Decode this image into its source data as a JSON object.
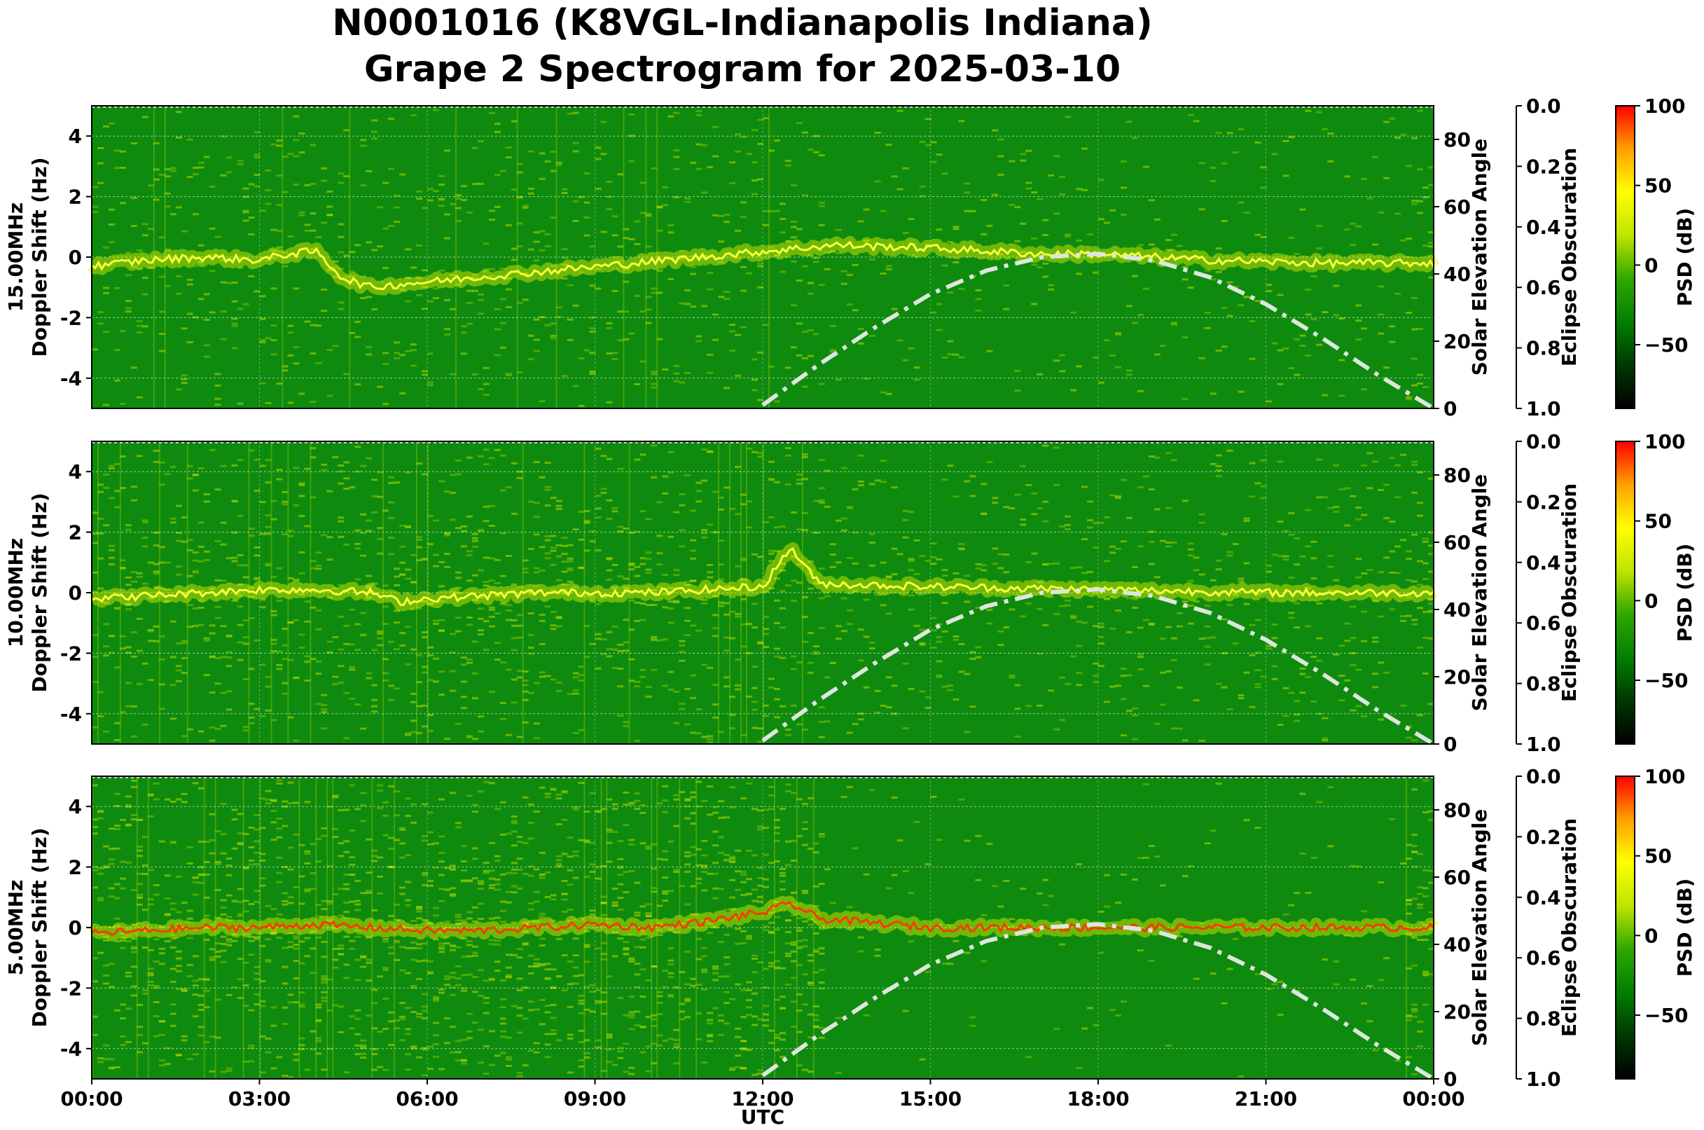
{
  "title_line1": "N0001016 (K8VGL-Indianapolis Indiana)",
  "title_line2": "Grape 2 Spectrogram for 2025-03-10",
  "xlabel": "UTC",
  "x_tick_labels": [
    "00:00",
    "03:00",
    "06:00",
    "09:00",
    "12:00",
    "15:00",
    "18:00",
    "21:00",
    "00:00"
  ],
  "colors": {
    "background_green": "#0e8a0e",
    "signal_yellow": "#e6f000",
    "signal_red": "#ff3a00",
    "solar_curve": "#dde6dd",
    "colormap": [
      "#000000",
      "#003800",
      "#008000",
      "#2ea800",
      "#bfe400",
      "#ffff00",
      "#ffa000",
      "#ff0000"
    ]
  },
  "chart_data": [
    {
      "type": "heatmap",
      "label": "15.00MHz",
      "ylabel": "15.00MHz\nDoppler Shift (Hz)",
      "y_ticks": [
        4,
        2,
        0,
        -2,
        -4
      ],
      "ylim": [
        -5,
        5
      ],
      "xlim": [
        "00:00",
        "24:00"
      ],
      "solar_axis": {
        "label": "Solar Elevation Angle",
        "ticks": [
          0,
          20,
          40,
          60,
          80
        ],
        "ylim": [
          0,
          90
        ]
      },
      "eclipse_axis": {
        "label": "Eclipse Obscuration",
        "ticks": [
          "0.0",
          "0.2",
          "0.4",
          "0.6",
          "0.8",
          "1.0"
        ],
        "ylim": [
          0,
          1
        ]
      },
      "colorbar": {
        "label": "PSD (dB)",
        "ticks": [
          "100",
          "50",
          "0",
          "−50"
        ],
        "range": [
          -90,
          100
        ]
      },
      "solar_elevation": {
        "hours": [
          12,
          13,
          14,
          15,
          16,
          17,
          18,
          19,
          20,
          21,
          22,
          23,
          24
        ],
        "degrees": [
          1,
          13,
          24,
          34,
          41,
          45,
          46,
          44,
          39,
          31,
          21,
          10,
          0
        ]
      },
      "doppler_trace": {
        "hours": [
          0,
          1,
          2,
          3,
          3.5,
          4,
          4.5,
          5,
          5.5,
          13.3,
          15,
          17,
          18,
          19,
          20,
          22,
          24
        ],
        "hz": [
          -0.3,
          -0.1,
          0.0,
          -0.1,
          0.1,
          0.2,
          -0.7,
          -1.0,
          -0.9,
          0.4,
          0.3,
          0.1,
          0.1,
          0.0,
          -0.1,
          -0.2,
          -0.2
        ]
      },
      "noise_level": 0.35,
      "day_noise_level": 0.2
    },
    {
      "type": "heatmap",
      "label": "10.00MHz",
      "ylabel": "10.00MHz\nDoppler Shift (Hz)",
      "y_ticks": [
        4,
        2,
        0,
        -2,
        -4
      ],
      "ylim": [
        -5,
        5
      ],
      "xlim": [
        "00:00",
        "24:00"
      ],
      "solar_axis": {
        "label": "Solar Elevation Angle",
        "ticks": [
          0,
          20,
          40,
          60,
          80
        ],
        "ylim": [
          0,
          90
        ]
      },
      "eclipse_axis": {
        "label": "Eclipse Obscuration",
        "ticks": [
          "0.0",
          "0.2",
          "0.4",
          "0.6",
          "0.8",
          "1.0"
        ],
        "ylim": [
          0,
          1
        ]
      },
      "colorbar": {
        "label": "PSD (dB)",
        "ticks": [
          "100",
          "50",
          "0",
          "−50"
        ],
        "range": [
          -90,
          100
        ]
      },
      "solar_elevation": {
        "hours": [
          12,
          13,
          14,
          15,
          16,
          17,
          18,
          19,
          20,
          21,
          22,
          23,
          24
        ],
        "degrees": [
          1,
          13,
          24,
          34,
          41,
          45,
          46,
          44,
          39,
          31,
          21,
          10,
          0
        ]
      },
      "doppler_trace": {
        "hours": [
          0,
          1,
          2,
          3,
          4,
          5,
          5.5,
          6,
          8,
          10,
          12,
          12.5,
          13,
          15,
          18,
          21,
          24
        ],
        "hz": [
          -0.2,
          -0.1,
          0.0,
          0.1,
          0.1,
          0.0,
          -0.3,
          -0.2,
          0.0,
          0.0,
          0.2,
          1.5,
          0.3,
          0.2,
          0.1,
          0.0,
          0.0
        ]
      },
      "noise_level": 0.55,
      "day_noise_level": 0.3
    },
    {
      "type": "heatmap",
      "label": "5.00MHz",
      "ylabel": "5.00MHz\nDoppler Shift (Hz)",
      "y_ticks": [
        4,
        2,
        0,
        -2,
        -4
      ],
      "ylim": [
        -5,
        5
      ],
      "xlim": [
        "00:00",
        "24:00"
      ],
      "solar_axis": {
        "label": "Solar Elevation Angle",
        "ticks": [
          0,
          20,
          40,
          60,
          80
        ],
        "ylim": [
          0,
          90
        ]
      },
      "eclipse_axis": {
        "label": "Eclipse Obscuration",
        "ticks": [
          "0.0",
          "0.2",
          "0.4",
          "0.6",
          "0.8",
          "1.0"
        ],
        "ylim": [
          0,
          1
        ]
      },
      "colorbar": {
        "label": "PSD (dB)",
        "ticks": [
          "100",
          "50",
          "0",
          "−50"
        ],
        "range": [
          -90,
          100
        ]
      },
      "solar_elevation": {
        "hours": [
          12,
          13,
          14,
          15,
          16,
          17,
          18,
          19,
          20,
          21,
          22,
          23,
          24
        ],
        "degrees": [
          1,
          13,
          24,
          34,
          41,
          45,
          46,
          44,
          39,
          31,
          21,
          10,
          0
        ]
      },
      "doppler_trace": {
        "hours": [
          0,
          1,
          2,
          3,
          4,
          5,
          6,
          7,
          8,
          9,
          10,
          11,
          12,
          12.5,
          13,
          15,
          18,
          21,
          24
        ],
        "hz": [
          -0.2,
          -0.1,
          0.0,
          0.0,
          0.1,
          0.0,
          -0.1,
          -0.1,
          0.0,
          0.1,
          0.0,
          0.2,
          0.5,
          0.8,
          0.3,
          0.0,
          0.0,
          0.0,
          0.0
        ]
      },
      "noise_level": 0.75,
      "day_noise_level": 0.1
    }
  ]
}
